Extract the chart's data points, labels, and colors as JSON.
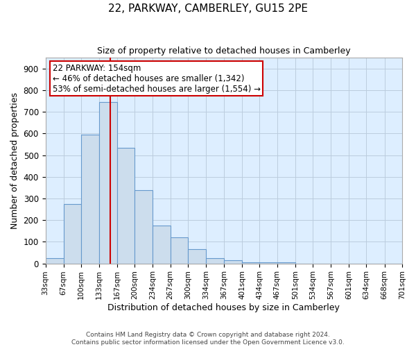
{
  "title": "22, PARKWAY, CAMBERLEY, GU15 2PE",
  "subtitle": "Size of property relative to detached houses in Camberley",
  "xlabel": "Distribution of detached houses by size in Camberley",
  "ylabel": "Number of detached properties",
  "footer_line1": "Contains HM Land Registry data © Crown copyright and database right 2024.",
  "footer_line2": "Contains public sector information licensed under the Open Government Licence v3.0.",
  "bar_edges": [
    33,
    67,
    100,
    133,
    167,
    200,
    234,
    267,
    300,
    334,
    367,
    401,
    434,
    467,
    501,
    534,
    567,
    601,
    634,
    668,
    701
  ],
  "bar_heights": [
    25,
    275,
    595,
    745,
    535,
    338,
    175,
    120,
    65,
    25,
    15,
    5,
    5,
    5,
    0,
    0,
    0,
    0,
    0,
    0
  ],
  "bar_color": "#ccdded",
  "bar_edge_color": "#6699cc",
  "bar_linewidth": 0.8,
  "red_line_x": 154,
  "red_line_color": "#cc0000",
  "ylim": [
    0,
    950
  ],
  "yticks": [
    0,
    100,
    200,
    300,
    400,
    500,
    600,
    700,
    800,
    900
  ],
  "annotation_line1": "22 PARKWAY: 154sqm",
  "annotation_line2": "← 46% of detached houses are smaller (1,342)",
  "annotation_line3": "53% of semi-detached houses are larger (1,554) →",
  "annotation_box_color": "#ffffff",
  "annotation_box_edgecolor": "#cc0000",
  "bg_color": "#ffffff",
  "plot_bg_color": "#ddeeff",
  "grid_color": "#bbccdd",
  "tick_labels": [
    "33sqm",
    "67sqm",
    "100sqm",
    "133sqm",
    "167sqm",
    "200sqm",
    "234sqm",
    "267sqm",
    "300sqm",
    "334sqm",
    "367sqm",
    "401sqm",
    "434sqm",
    "467sqm",
    "501sqm",
    "534sqm",
    "567sqm",
    "601sqm",
    "634sqm",
    "668sqm",
    "701sqm"
  ]
}
